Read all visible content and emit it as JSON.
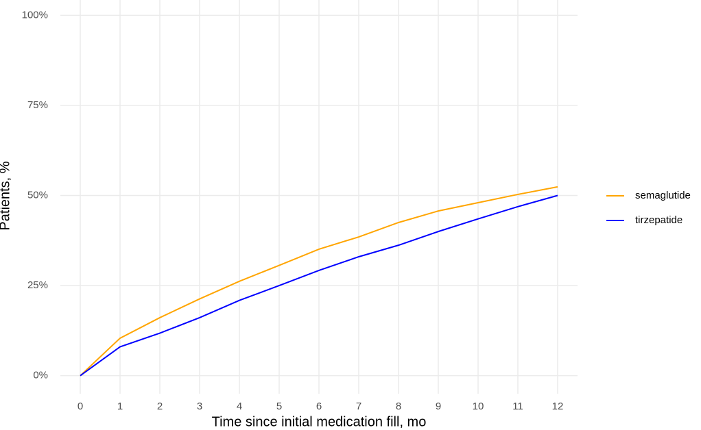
{
  "chart_data": {
    "type": "line",
    "x_label": "Time since initial medication fill, mo",
    "y_label": "Patients, %",
    "x": [
      0,
      1,
      2,
      3,
      4,
      5,
      6,
      7,
      8,
      9,
      10,
      11,
      12
    ],
    "series": [
      {
        "name": "semaglutide",
        "color": "#ffa500",
        "values": [
          0,
          10.4,
          16.1,
          21.3,
          26.2,
          30.6,
          35.1,
          38.5,
          42.5,
          45.7,
          48.0,
          50.3,
          52.4
        ]
      },
      {
        "name": "tirzepatide",
        "color": "#0000ff",
        "values": [
          0,
          8.0,
          11.8,
          16.1,
          20.9,
          25.0,
          29.2,
          33.0,
          36.2,
          40.0,
          43.5,
          46.9,
          50.0
        ]
      }
    ],
    "xlim": [
      -0.5,
      12.5
    ],
    "xticks": [
      0,
      1,
      2,
      3,
      4,
      5,
      6,
      7,
      8,
      9,
      10,
      11,
      12
    ],
    "ylim": [
      -5,
      105
    ],
    "yticks": [
      {
        "value": 0,
        "label": "0%"
      },
      {
        "value": 25,
        "label": "25%"
      },
      {
        "value": 50,
        "label": "50%"
      },
      {
        "value": 75,
        "label": "75%"
      },
      {
        "value": 100,
        "label": "100%"
      }
    ],
    "grid": true,
    "legend": "right"
  }
}
